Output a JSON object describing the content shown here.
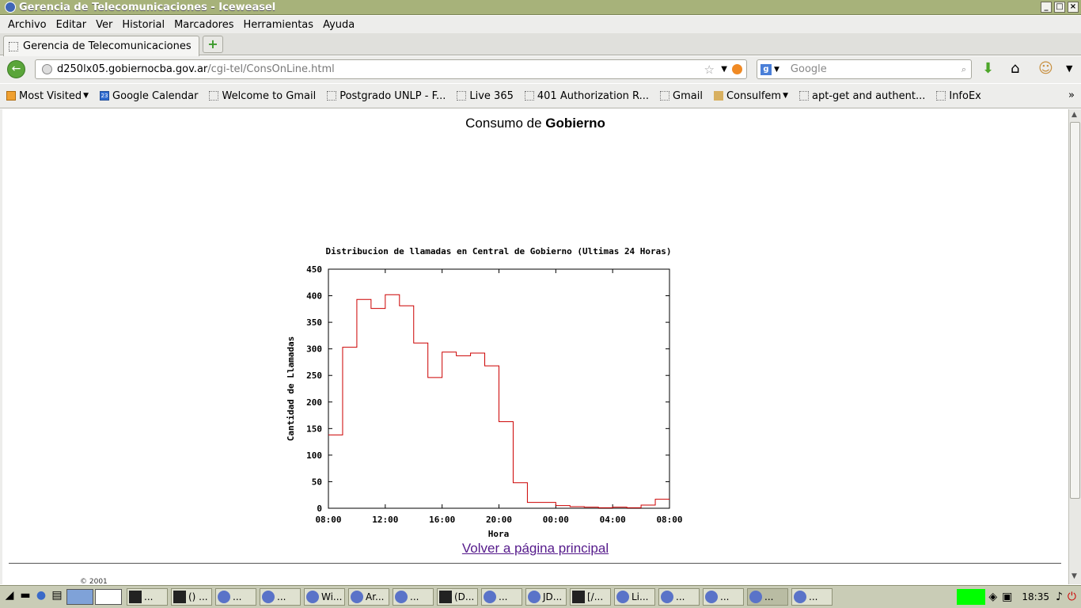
{
  "window": {
    "title": "Gerencia de Telecomunicaciones - Iceweasel"
  },
  "menu": [
    "Archivo",
    "Editar",
    "Ver",
    "Historial",
    "Marcadores",
    "Herramientas",
    "Ayuda"
  ],
  "tab": {
    "label": "Gerencia de Telecomunicaciones"
  },
  "url": {
    "host": "d250lx05.gobiernocba.gov.ar",
    "path": "/cgi-tel/ConsOnLine.html"
  },
  "search": {
    "placeholder": "Google"
  },
  "bookmarks": [
    "Most Visited",
    "Google Calendar",
    "Welcome to Gmail",
    "Postgrado UNLP - F...",
    "Live 365",
    "401 Authorization R...",
    "Gmail",
    "Consulfem",
    "apt-get and authent...",
    "InfoEx"
  ],
  "page": {
    "heading_prefix": "Consumo de ",
    "heading_bold": "Gobierno",
    "link": "Volver a página principal",
    "footer_partial": "© 2001"
  },
  "chart_data": {
    "type": "line",
    "title": "Distribucion de llamadas en Central de Gobierno (Ultimas 24 Horas)",
    "xlabel": "Hora",
    "ylabel": "Cantidad de Llamadas",
    "ylim": [
      0,
      450
    ],
    "yticks": [
      0,
      50,
      100,
      150,
      200,
      250,
      300,
      350,
      400,
      450
    ],
    "xtick_labels": [
      "08:00",
      "12:00",
      "16:00",
      "20:00",
      "00:00",
      "04:00",
      "08:00"
    ],
    "line_color": "#cc0000",
    "x_hours": [
      8,
      9,
      10,
      11,
      12,
      13,
      14,
      15,
      16,
      17,
      18,
      19,
      20,
      21,
      22,
      23,
      0,
      1,
      2,
      3,
      4,
      5,
      6,
      7
    ],
    "values": [
      138,
      303,
      393,
      376,
      402,
      381,
      311,
      246,
      294,
      287,
      292,
      268,
      163,
      48,
      11,
      11,
      5,
      3,
      2,
      1,
      2,
      1,
      6,
      17
    ]
  },
  "taskbar": {
    "tasks": [
      "...",
      "() ...",
      "...",
      "...",
      "Wi...",
      "Ar...",
      "...",
      "(D...",
      "...",
      "JD...",
      "[/...",
      "Li...",
      "...",
      "...",
      "...",
      "..."
    ],
    "clock": "18:35"
  }
}
